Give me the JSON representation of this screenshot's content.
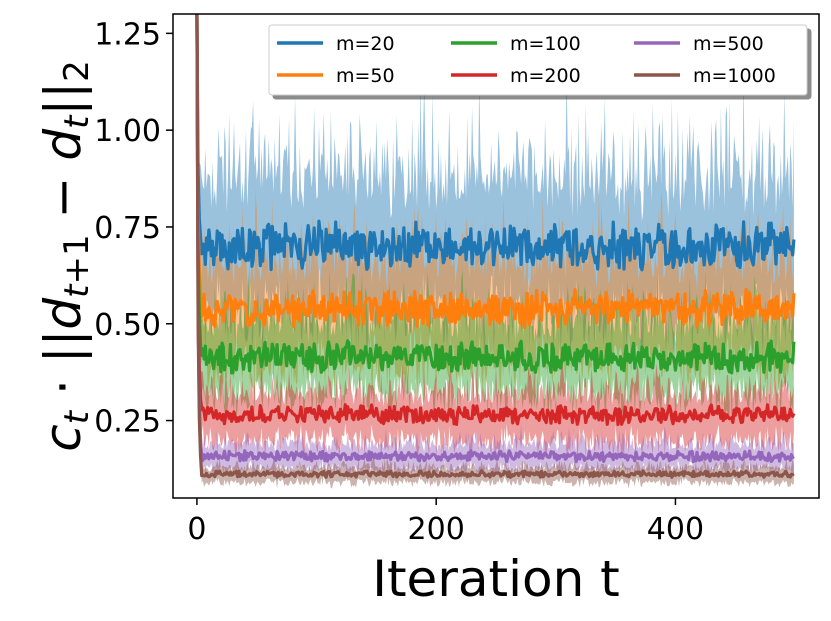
{
  "chart_data": {
    "type": "line",
    "title": "",
    "xlabel": "Iteration t",
    "ylabel": "c_t · ||d_{t+1} − d_t||_2",
    "xlim": [
      -20,
      520
    ],
    "ylim": [
      0.05,
      1.3
    ],
    "xticks": [
      0,
      200,
      400
    ],
    "xtick_labels": [
      "0",
      "200",
      "400"
    ],
    "yticks": [
      0.25,
      0.5,
      0.75,
      1.0,
      1.25
    ],
    "ytick_labels": [
      "0.25",
      "0.50",
      "0.75",
      "1.00",
      "1.25"
    ],
    "grid": false,
    "legend_location": "top-right",
    "legend_columns": 3,
    "n_iterations": 500,
    "start_value": 1.3,
    "series": [
      {
        "name": "m=20",
        "color": "#1f77b4",
        "mean": 0.7,
        "noise": 0.045,
        "band_low": 0.18,
        "band_high": 0.22,
        "seed": 11
      },
      {
        "name": "m=50",
        "color": "#ff7f0e",
        "mean": 0.54,
        "noise": 0.035,
        "band_low": 0.14,
        "band_high": 0.16,
        "seed": 23
      },
      {
        "name": "m=100",
        "color": "#2ca02c",
        "mean": 0.415,
        "noise": 0.03,
        "band_low": 0.1,
        "band_high": 0.12,
        "seed": 37
      },
      {
        "name": "m=200",
        "color": "#d62728",
        "mean": 0.265,
        "noise": 0.018,
        "band_low": 0.07,
        "band_high": 0.07,
        "seed": 41
      },
      {
        "name": "m=500",
        "color": "#9467bd",
        "mean": 0.158,
        "noise": 0.01,
        "band_low": 0.035,
        "band_high": 0.04,
        "seed": 53
      },
      {
        "name": "m=1000",
        "color": "#8c564b",
        "mean": 0.112,
        "noise": 0.006,
        "band_low": 0.022,
        "band_high": 0.022,
        "seed": 67
      }
    ]
  }
}
